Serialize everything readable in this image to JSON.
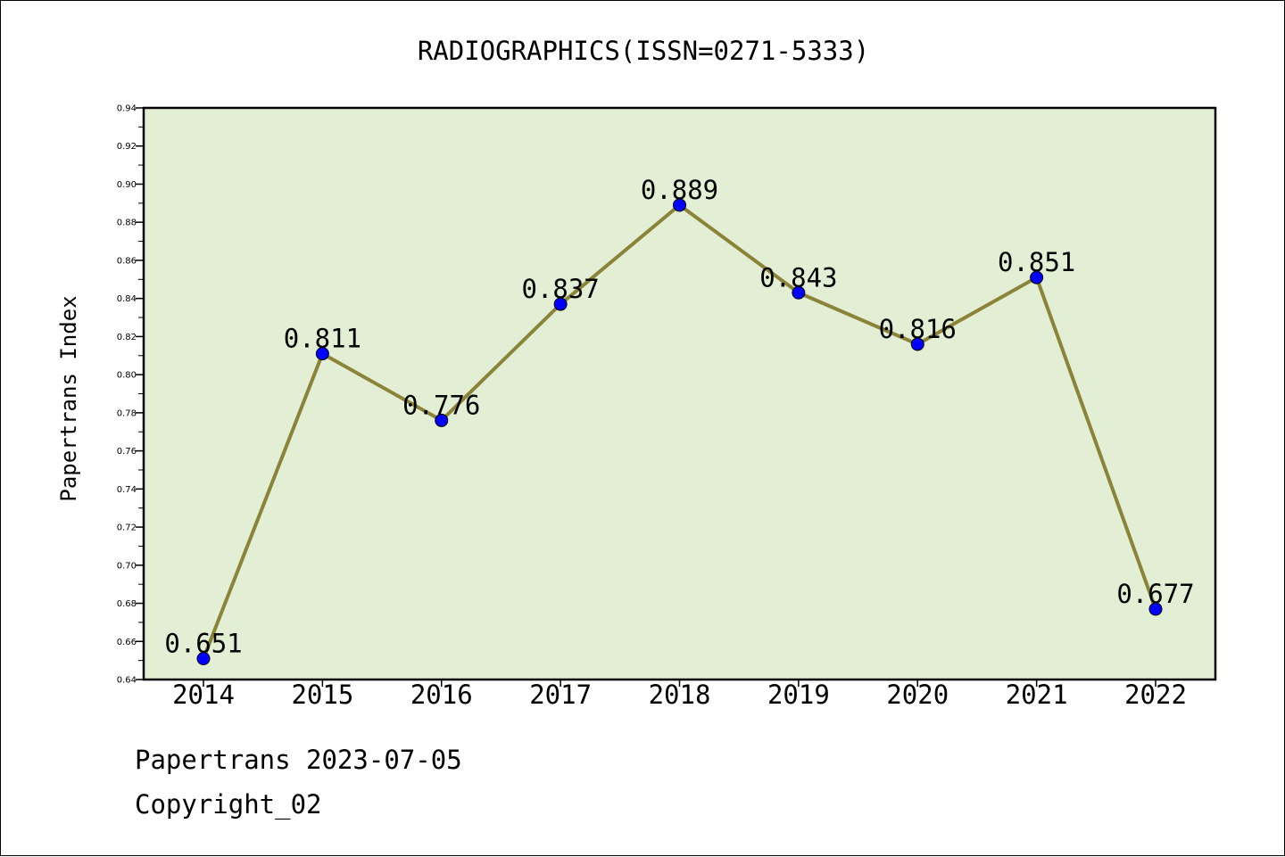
{
  "chart_data": {
    "type": "line",
    "title": "RADIOGRAPHICS(ISSN=0271-5333)",
    "xlabel": "",
    "ylabel": "Papertrans Index",
    "categories": [
      "2014",
      "2015",
      "2016",
      "2017",
      "2018",
      "2019",
      "2020",
      "2021",
      "2022"
    ],
    "series": [
      {
        "values": [
          0.651,
          0.811,
          0.776,
          0.837,
          0.889,
          0.843,
          0.816,
          0.851,
          0.677
        ],
        "data_labels": [
          "0.651",
          "0.811",
          "0.776",
          "0.837",
          "0.889",
          "0.843",
          "0.816",
          "0.851",
          "0.677"
        ]
      }
    ],
    "ylim": [
      0.64,
      0.94
    ],
    "yticks": [
      "0.64",
      "0.66",
      "0.68",
      "0.70",
      "0.72",
      "0.74",
      "0.76",
      "0.78",
      "0.80",
      "0.82",
      "0.84",
      "0.86",
      "0.88",
      "0.90",
      "0.92",
      "0.94"
    ],
    "grid": false,
    "legend": "none",
    "colors": {
      "plot_background": "#e2efd4",
      "line": "#8b8438",
      "marker": "#0000ff",
      "axis": "#000000"
    }
  },
  "footer": {
    "line1": "Papertrans 2023-07-05",
    "line2": "Copyright_02"
  }
}
